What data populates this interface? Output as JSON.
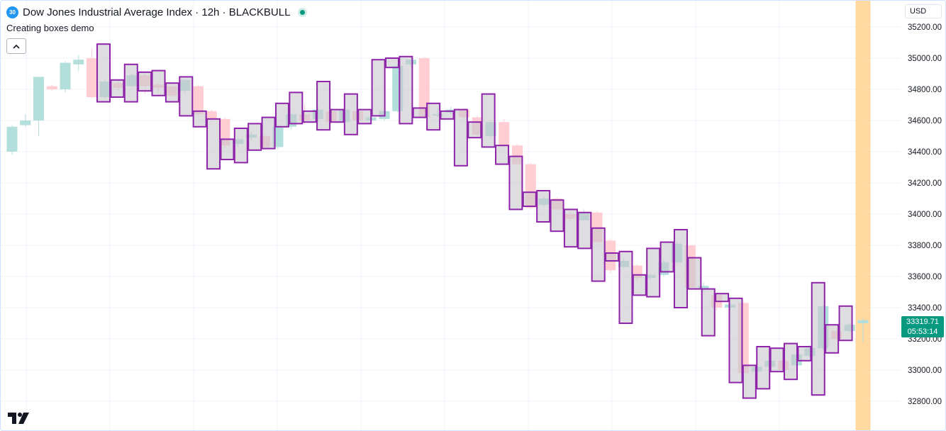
{
  "header": {
    "badge": "30",
    "title": "Dow Jones Industrial Average Index · 12h · BLACKBULL"
  },
  "indicator": {
    "name": "Creating boxes demo",
    "collapse_icon": "chevron-up-icon"
  },
  "toolbar": {
    "currency": "USD"
  },
  "price_tag": {
    "price": "33319.71",
    "countdown": "05:53:14"
  },
  "colors": {
    "up": "#b2dfdb",
    "down": "#ffcdd2",
    "box_border": "#8e24aa",
    "box_fill": "#c8c6cc",
    "highlight": "#ffcc80",
    "price_tag": "#089981"
  },
  "chart_data": {
    "type": "candlestick",
    "y_axis": {
      "ticks": [
        32800,
        33000,
        33200,
        33400,
        33600,
        33800,
        34000,
        34200,
        34400,
        34600,
        34800,
        35000,
        35200
      ],
      "tick_labels": [
        "32800.00",
        "33000.00",
        "33200.00",
        "33400.00",
        "33600.00",
        "33800.00",
        "34000.00",
        "34200.00",
        "34400.00",
        "34600.00",
        "34800.00",
        "35000.00",
        "35200.00"
      ],
      "position": "right"
    },
    "grid": true,
    "candles": [
      [
        34400,
        34560,
        34380,
        34570
      ],
      [
        34570,
        34600,
        34560,
        34640
      ],
      [
        34600,
        34880,
        34500,
        34880
      ],
      [
        34820,
        34800,
        34790,
        34830
      ],
      [
        34800,
        34970,
        34780,
        34980
      ],
      [
        34960,
        34990,
        34920,
        35020
      ],
      [
        35000,
        34750,
        34740,
        35060
      ],
      [
        34750,
        34850,
        34740,
        34860
      ],
      [
        34840,
        34810,
        34790,
        34860
      ],
      [
        34820,
        34890,
        34810,
        34900
      ],
      [
        34890,
        34820,
        34770,
        34900
      ],
      [
        34830,
        34810,
        34780,
        34840
      ],
      [
        34820,
        34760,
        34750,
        34830
      ],
      [
        34790,
        34860,
        34770,
        34870
      ],
      [
        34820,
        34640,
        34630,
        34830
      ],
      [
        34660,
        34610,
        34590,
        34670
      ],
      [
        34610,
        34440,
        34420,
        34620
      ],
      [
        34450,
        34480,
        34430,
        34490
      ],
      [
        34490,
        34510,
        34470,
        34530
      ],
      [
        34500,
        34430,
        34420,
        34510
      ],
      [
        34430,
        34560,
        34420,
        34580
      ],
      [
        34560,
        34640,
        34540,
        34650
      ],
      [
        34640,
        34600,
        34580,
        34700
      ],
      [
        34610,
        34670,
        34590,
        34690
      ],
      [
        34660,
        34590,
        34580,
        34680
      ],
      [
        34590,
        34670,
        34580,
        34700
      ],
      [
        34660,
        34600,
        34590,
        34670
      ],
      [
        34600,
        34620,
        34590,
        34650
      ],
      [
        34610,
        34660,
        34600,
        34670
      ],
      [
        34660,
        34950,
        34650,
        34960
      ],
      [
        34960,
        34990,
        34950,
        35010
      ],
      [
        35000,
        34620,
        34610,
        35010
      ],
      [
        34640,
        34640,
        34620,
        34680
      ],
      [
        34650,
        34670,
        34640,
        34690
      ],
      [
        34670,
        34620,
        34610,
        34680
      ],
      [
        34620,
        34510,
        34500,
        34630
      ],
      [
        34500,
        34590,
        34490,
        34600
      ],
      [
        34590,
        34440,
        34430,
        34610
      ],
      [
        34440,
        34320,
        34310,
        34450
      ],
      [
        34320,
        34040,
        34030,
        34330
      ],
      [
        34060,
        34100,
        34050,
        34110
      ],
      [
        34100,
        34030,
        34020,
        34110
      ],
      [
        34000,
        33970,
        33950,
        34020
      ],
      [
        33960,
        34010,
        33950,
        34030
      ],
      [
        34010,
        33820,
        33810,
        34020
      ],
      [
        33830,
        33640,
        33620,
        33840
      ],
      [
        33660,
        33700,
        33650,
        33720
      ],
      [
        33670,
        33590,
        33570,
        33680
      ],
      [
        33590,
        33610,
        33580,
        33620
      ],
      [
        33610,
        33690,
        33600,
        33710
      ],
      [
        33690,
        33810,
        33680,
        33820
      ],
      [
        33800,
        33530,
        33520,
        33800
      ],
      [
        33520,
        33540,
        33500,
        33560
      ],
      [
        33480,
        33400,
        33380,
        33490
      ],
      [
        33400,
        33420,
        33380,
        33430
      ],
      [
        33430,
        32980,
        32970,
        33440
      ],
      [
        32990,
        33020,
        32980,
        33030
      ],
      [
        33020,
        33060,
        33000,
        33070
      ],
      [
        33060,
        33000,
        32990,
        33070
      ],
      [
        33030,
        33100,
        33020,
        33120
      ],
      [
        33090,
        33140,
        33080,
        33160
      ],
      [
        33140,
        33410,
        33130,
        33420
      ],
      [
        33250,
        33200,
        33190,
        33260
      ],
      [
        33250,
        33290,
        33240,
        33300
      ],
      [
        33300,
        33319.71,
        33180,
        33330
      ]
    ],
    "boxes": [
      [
        34720,
        35090
      ],
      [
        34750,
        34860
      ],
      [
        34720,
        34960
      ],
      [
        34790,
        34910
      ],
      [
        34760,
        34920
      ],
      [
        34720,
        34840
      ],
      [
        34630,
        34880
      ],
      [
        34560,
        34660
      ],
      [
        34290,
        34610
      ],
      [
        34350,
        34480
      ],
      [
        34330,
        34550
      ],
      [
        34410,
        34580
      ],
      [
        34420,
        34620
      ],
      [
        34560,
        34710
      ],
      [
        34580,
        34780
      ],
      [
        34590,
        34660
      ],
      [
        34540,
        34850
      ],
      [
        34590,
        34670
      ],
      [
        34510,
        34770
      ],
      [
        34580,
        34670
      ],
      [
        34630,
        34990
      ],
      [
        34940,
        35000
      ],
      [
        34580,
        35010
      ],
      [
        34620,
        34680
      ],
      [
        34540,
        34710
      ],
      [
        34610,
        34660
      ],
      [
        34310,
        34670
      ],
      [
        34490,
        34590
      ],
      [
        34430,
        34770
      ],
      [
        34320,
        34440
      ],
      [
        34030,
        34370
      ],
      [
        34050,
        34140
      ],
      [
        33950,
        34150
      ],
      [
        33890,
        34090
      ],
      [
        33790,
        34030
      ],
      [
        33780,
        34010
      ],
      [
        33570,
        33910
      ],
      [
        33700,
        33750
      ],
      [
        33300,
        33760
      ],
      [
        33480,
        33610
      ],
      [
        33470,
        33780
      ],
      [
        33630,
        33820
      ],
      [
        33400,
        33900
      ],
      [
        33520,
        33720
      ],
      [
        33220,
        33520
      ],
      [
        33440,
        33490
      ],
      [
        32920,
        33460
      ],
      [
        32820,
        33030
      ],
      [
        32880,
        33150
      ],
      [
        32990,
        33140
      ],
      [
        32940,
        33170
      ],
      [
        33060,
        33150
      ],
      [
        32840,
        33560
      ],
      [
        33110,
        33290
      ],
      [
        33190,
        33410
      ]
    ],
    "highlight_candle_index": 64,
    "last_price": 33319.71
  }
}
